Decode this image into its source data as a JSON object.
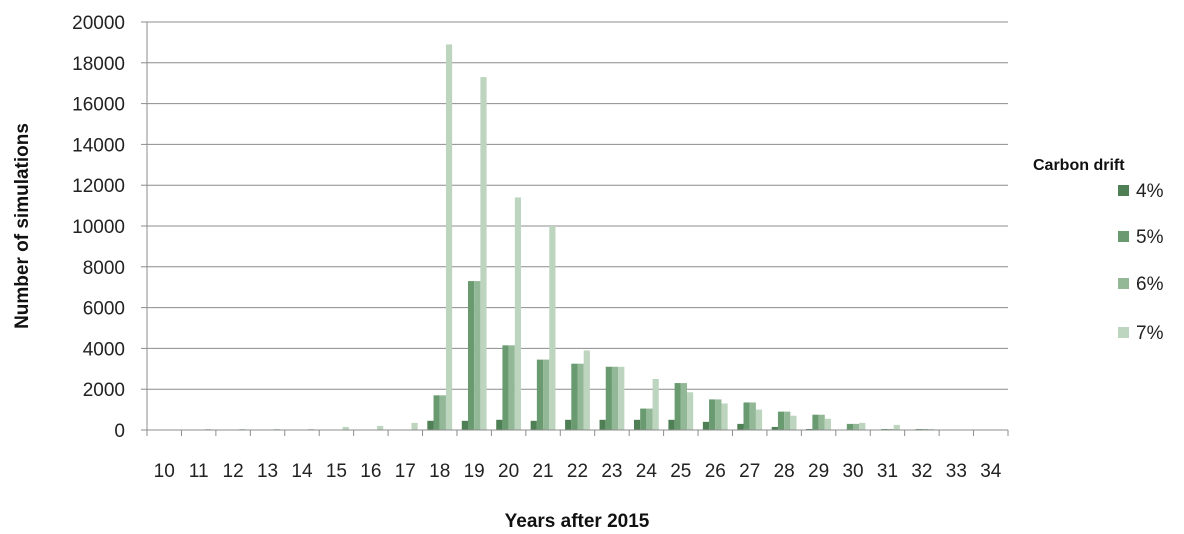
{
  "chart_data": {
    "type": "bar",
    "title": "",
    "xlabel": "Years after 2015",
    "ylabel": "Number of simulations",
    "ylim": [
      0,
      20000
    ],
    "yticks": [
      0,
      2000,
      4000,
      6000,
      8000,
      10000,
      12000,
      14000,
      16000,
      18000,
      20000
    ],
    "grid": "horizontal",
    "legend_title": "Carbon drift",
    "legend_position": "right",
    "categories": [
      "10",
      "11",
      "12",
      "13",
      "14",
      "15",
      "16",
      "17",
      "18",
      "19",
      "20",
      "21",
      "22",
      "23",
      "24",
      "25",
      "26",
      "27",
      "28",
      "29",
      "30",
      "31",
      "32",
      "33",
      "34"
    ],
    "series": [
      {
        "name": "4%",
        "color": "#4f7f55",
        "values": [
          0,
          0,
          0,
          0,
          0,
          0,
          0,
          0,
          450,
          450,
          500,
          450,
          500,
          500,
          500,
          500,
          400,
          300,
          150,
          50,
          0,
          0,
          0,
          0,
          0
        ]
      },
      {
        "name": "5%",
        "color": "#6a9b70",
        "values": [
          0,
          0,
          0,
          0,
          0,
          0,
          0,
          0,
          1700,
          7300,
          4150,
          3450,
          3250,
          3100,
          1050,
          2300,
          1500,
          1350,
          900,
          750,
          300,
          50,
          50,
          0,
          0
        ]
      },
      {
        "name": "6%",
        "color": "#93b897",
        "values": [
          0,
          0,
          0,
          0,
          0,
          0,
          0,
          0,
          1700,
          7300,
          4150,
          3450,
          3250,
          3100,
          1050,
          2300,
          1500,
          1350,
          900,
          750,
          300,
          50,
          50,
          0,
          0
        ]
      },
      {
        "name": "7%",
        "color": "#bdd5be",
        "values": [
          0,
          50,
          50,
          50,
          50,
          150,
          200,
          350,
          18900,
          17300,
          11400,
          10000,
          3900,
          3100,
          2500,
          1850,
          1300,
          1000,
          700,
          550,
          350,
          250,
          50,
          0,
          0
        ]
      }
    ]
  }
}
